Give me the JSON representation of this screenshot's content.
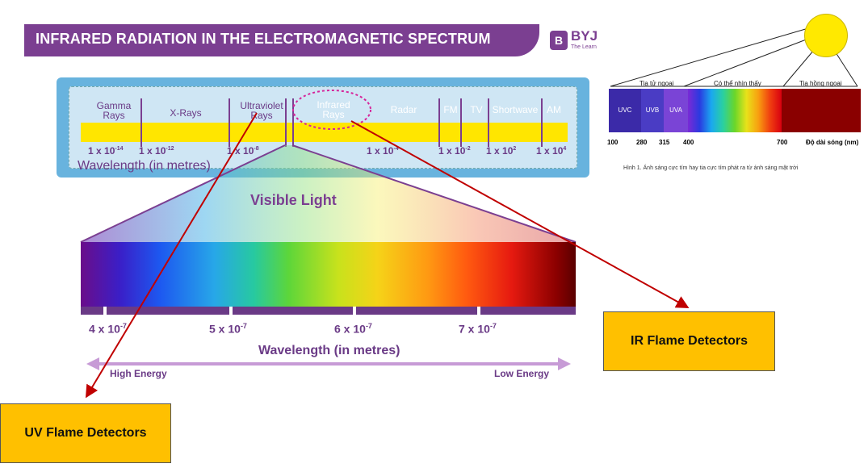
{
  "title": "INFRARED RADIATION IN THE ELECTROMAGNETIC SPECTRUM",
  "logo": {
    "mark": "B",
    "name": "BYJ",
    "tagline": "The Learn"
  },
  "spectrum": {
    "bands": [
      {
        "label": "Gamma\nRays"
      },
      {
        "label": "X-Rays"
      },
      {
        "label": "Ultraviolet\nRays"
      },
      {
        "label": "Infrared\nRays"
      },
      {
        "label": "Radar"
      },
      {
        "label": "FM"
      },
      {
        "label": "TV"
      },
      {
        "label": "Shortwave"
      },
      {
        "label": "AM"
      }
    ],
    "wavelengths": [
      {
        "base": "1 x 10",
        "exp": "-14"
      },
      {
        "base": "1 x 10",
        "exp": "-12"
      },
      {
        "base": "1 x 10",
        "exp": "-8"
      },
      {
        "base": "1 x 10",
        "exp": "-4"
      },
      {
        "base": "1 x 10",
        "exp": "-2"
      },
      {
        "base": "1 x 10",
        "exp": "2"
      },
      {
        "base": "1 x 10",
        "exp": "4"
      }
    ],
    "axis_label": "Wavelength (in metres)"
  },
  "visible": {
    "title": "Visible Light",
    "wavelengths": [
      {
        "base": "4 x 10",
        "exp": "-7"
      },
      {
        "base": "5 x 10",
        "exp": "-7"
      },
      {
        "base": "6 x 10",
        "exp": "-7"
      },
      {
        "base": "7 x 10",
        "exp": "-7"
      }
    ],
    "axis_label": "Wavelength (in metres)",
    "high_energy": "High Energy",
    "low_energy": "Low Energy"
  },
  "detectors": {
    "ir": "IR Flame Detectors",
    "uv": "UV Flame Detectors"
  },
  "reference": {
    "uv_group": "Tia tử ngoại",
    "visible_group": "Có thể nhìn thấy",
    "ir_group": "Tia hồng ngoại",
    "segments": [
      "UVC",
      "UVB",
      "UVA"
    ],
    "ticks": [
      "100",
      "280",
      "315",
      "400",
      "700"
    ],
    "axis_unit": "Độ dài sóng (nm)",
    "caption": "Hình 1. Ánh sáng cực tím hay tia cực tím phát ra từ ánh sáng mặt trời"
  },
  "colors": {
    "purple": "#7b3f91",
    "detector": "#ffc000",
    "arrow": "#c00000",
    "band": "#ffe600"
  }
}
